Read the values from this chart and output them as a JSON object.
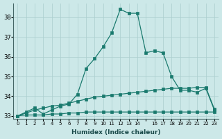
{
  "xlabel": "Humidex (Indice chaleur)",
  "x_values": [
    0,
    1,
    2,
    3,
    4,
    5,
    6,
    7,
    8,
    9,
    10,
    11,
    12,
    13,
    14,
    15,
    16,
    17,
    18,
    19,
    20,
    21,
    22,
    23
  ],
  "line_main": [
    33.0,
    33.2,
    33.4,
    33.1,
    33.3,
    33.5,
    33.6,
    34.1,
    35.4,
    35.9,
    36.5,
    37.2,
    38.4,
    38.2,
    38.2,
    36.2,
    36.3,
    36.2,
    35.0,
    34.3,
    34.3,
    34.2,
    34.4,
    33.3
  ],
  "line_grad": [
    33.0,
    33.15,
    33.3,
    33.4,
    33.5,
    33.55,
    33.65,
    33.75,
    33.85,
    33.95,
    34.0,
    34.05,
    34.1,
    34.15,
    34.2,
    34.25,
    34.3,
    34.35,
    34.4,
    34.4,
    34.4,
    34.45,
    34.45,
    33.35
  ],
  "line_flat": [
    33.0,
    33.05,
    33.05,
    33.05,
    33.1,
    33.1,
    33.15,
    33.15,
    33.2,
    33.2,
    33.2,
    33.2,
    33.2,
    33.2,
    33.2,
    33.2,
    33.2,
    33.2,
    33.2,
    33.2,
    33.2,
    33.2,
    33.2,
    33.2
  ],
  "ylim": [
    32.85,
    38.7
  ],
  "yticks": [
    33,
    34,
    35,
    36,
    37,
    38
  ],
  "xtick_labels": [
    "0",
    "1",
    "2",
    "3",
    "4",
    "5",
    "6",
    "7",
    "8",
    "9",
    "10",
    "11",
    "12",
    "13",
    "14",
    "",
    "16",
    "17",
    "18",
    "19",
    "20",
    "21",
    "22",
    "23"
  ],
  "line_color": "#1a7a6e",
  "bg_color": "#cce8e8",
  "grid_color": "#aacece"
}
